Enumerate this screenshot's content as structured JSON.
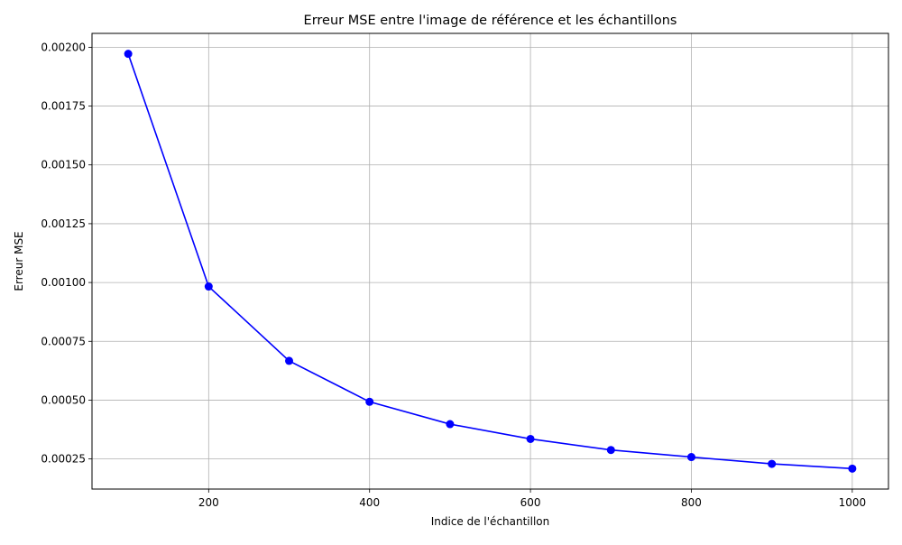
{
  "chart_data": {
    "type": "line",
    "title": "Erreur MSE entre l'image de référence et les échantillons",
    "xlabel": "Indice de l'échantillon",
    "ylabel": "Erreur MSE",
    "x": [
      100,
      200,
      300,
      400,
      500,
      600,
      700,
      800,
      900,
      1000
    ],
    "series": [
      {
        "values": [
          0.001972,
          0.000983,
          0.000667,
          0.000493,
          0.000398,
          0.000335,
          0.000288,
          0.000258,
          0.000229,
          0.000209
        ],
        "color": "#0000ff",
        "marker": "circle"
      }
    ],
    "xlim": [
      55,
      1045
    ],
    "ylim": [
      0.000122,
      0.002059
    ],
    "xticks": [
      200,
      400,
      600,
      800,
      1000
    ],
    "xtick_labels": [
      "200",
      "400",
      "600",
      "800",
      "1000"
    ],
    "yticks": [
      0.00025,
      0.0005,
      0.00075,
      0.001,
      0.00125,
      0.0015,
      0.00175,
      0.002
    ],
    "ytick_labels": [
      "0.00025",
      "0.00050",
      "0.00075",
      "0.00100",
      "0.00125",
      "0.00150",
      "0.00175",
      "0.00200"
    ],
    "grid": true,
    "grid_color": "#b0b0b0",
    "axis_color": "#000000"
  }
}
